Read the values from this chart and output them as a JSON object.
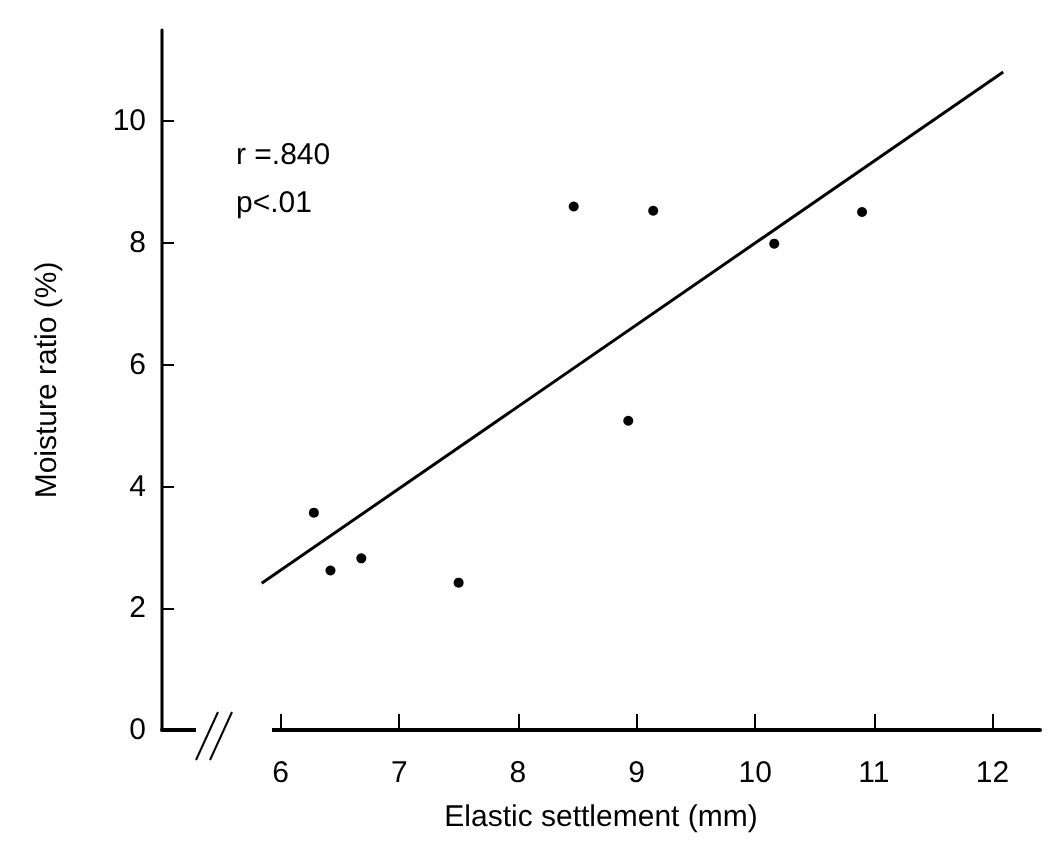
{
  "chart_data": {
    "type": "scatter",
    "xlabel": "Elastic settlement (mm)",
    "ylabel": "Moisture ratio (%)",
    "annotations": [
      "r =.840",
      "p<.01"
    ],
    "xlim": [
      5,
      12.4
    ],
    "xticks": [
      6,
      7,
      8,
      9,
      10,
      11,
      12
    ],
    "ylim": [
      0,
      11.5
    ],
    "yticks": [
      0,
      2,
      4,
      6,
      8,
      10
    ],
    "grid": false,
    "marker": "circle",
    "series": [
      {
        "color": "#000000",
        "x": [
          6.28,
          6.42,
          6.68,
          7.5,
          8.47,
          8.93,
          9.14,
          10.16,
          10.9
        ],
        "values": [
          3.57,
          2.62,
          2.82,
          2.42,
          8.6,
          5.08,
          8.53,
          7.99,
          8.51
        ]
      },
      {
        "type": "line",
        "color": "#000000",
        "line_style": "solid",
        "marker": "none",
        "x": [
          5.84,
          12.09
        ],
        "values": [
          2.41,
          10.81
        ]
      }
    ]
  }
}
